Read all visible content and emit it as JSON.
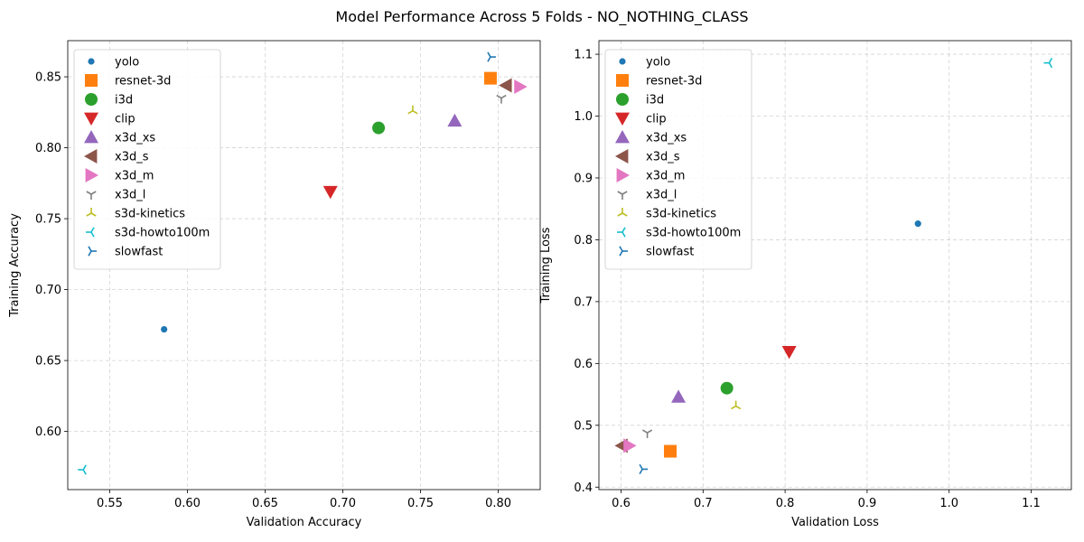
{
  "suptitle": "Model Performance Across 5 Folds - NO_NOTHING_CLASS",
  "chart_data": [
    {
      "type": "scatter",
      "title": "",
      "xlabel": "Validation Accuracy",
      "ylabel": "Training Accuracy",
      "xlim": [
        0.523,
        0.827
      ],
      "ylim": [
        0.559,
        0.8755
      ],
      "xticks": [
        "0.55",
        "0.60",
        "0.65",
        "0.70",
        "0.75",
        "0.80"
      ],
      "yticks": [
        "0.60",
        "0.65",
        "0.70",
        "0.75",
        "0.80",
        "0.85"
      ],
      "grid": true,
      "legend": "top-left",
      "series": [
        {
          "name": "yolo",
          "x": 0.585,
          "y": 0.672
        },
        {
          "name": "resnet-3d",
          "x": 0.795,
          "y": 0.849
        },
        {
          "name": "i3d",
          "x": 0.723,
          "y": 0.814
        },
        {
          "name": "clip",
          "x": 0.692,
          "y": 0.769
        },
        {
          "name": "x3d_xs",
          "x": 0.772,
          "y": 0.819
        },
        {
          "name": "x3d_s",
          "x": 0.805,
          "y": 0.844
        },
        {
          "name": "x3d_m",
          "x": 0.814,
          "y": 0.843
        },
        {
          "name": "x3d_l",
          "x": 0.802,
          "y": 0.835
        },
        {
          "name": "s3d-kinetics",
          "x": 0.745,
          "y": 0.826
        },
        {
          "name": "s3d-howto100m",
          "x": 0.533,
          "y": 0.573
        },
        {
          "name": "slowfast",
          "x": 0.795,
          "y": 0.864
        }
      ]
    },
    {
      "type": "scatter",
      "title": "",
      "xlabel": "Validation Loss",
      "ylabel": "Training Loss",
      "xlim": [
        0.573,
        1.149
      ],
      "ylim": [
        0.396,
        1.122
      ],
      "xticks": [
        "0.6",
        "0.7",
        "0.8",
        "0.9",
        "1.0",
        "1.1"
      ],
      "yticks": [
        "0.4",
        "0.5",
        "0.6",
        "0.7",
        "0.8",
        "0.9",
        "1.0",
        "1.1"
      ],
      "grid": true,
      "legend": "top-left",
      "series": [
        {
          "name": "yolo",
          "x": 0.962,
          "y": 0.826
        },
        {
          "name": "resnet-3d",
          "x": 0.66,
          "y": 0.458
        },
        {
          "name": "i3d",
          "x": 0.729,
          "y": 0.56
        },
        {
          "name": "clip",
          "x": 0.805,
          "y": 0.619
        },
        {
          "name": "x3d_xs",
          "x": 0.67,
          "y": 0.546
        },
        {
          "name": "x3d_s",
          "x": 0.601,
          "y": 0.467
        },
        {
          "name": "x3d_m",
          "x": 0.61,
          "y": 0.467
        },
        {
          "name": "x3d_l",
          "x": 0.632,
          "y": 0.488
        },
        {
          "name": "s3d-kinetics",
          "x": 0.74,
          "y": 0.531
        },
        {
          "name": "s3d-howto100m",
          "x": 1.122,
          "y": 1.086
        },
        {
          "name": "slowfast",
          "x": 0.626,
          "y": 0.429
        }
      ]
    }
  ],
  "styles": {
    "yolo": {
      "color": "#1f77b4",
      "marker": "dot"
    },
    "resnet-3d": {
      "color": "#ff7f0e",
      "marker": "square"
    },
    "i3d": {
      "color": "#2ca02c",
      "marker": "circle"
    },
    "clip": {
      "color": "#d62728",
      "marker": "triangle-down"
    },
    "x3d_xs": {
      "color": "#9467bd",
      "marker": "triangle-up"
    },
    "x3d_s": {
      "color": "#8c564b",
      "marker": "triangle-left"
    },
    "x3d_m": {
      "color": "#e377c2",
      "marker": "triangle-right"
    },
    "x3d_l": {
      "color": "#7f7f7f",
      "marker": "tri-down"
    },
    "s3d-kinetics": {
      "color": "#bcbd22",
      "marker": "tri-up"
    },
    "s3d-howto100m": {
      "color": "#17becf",
      "marker": "tri-left"
    },
    "slowfast": {
      "color": "#1f77b4",
      "marker": "tri-right"
    }
  }
}
